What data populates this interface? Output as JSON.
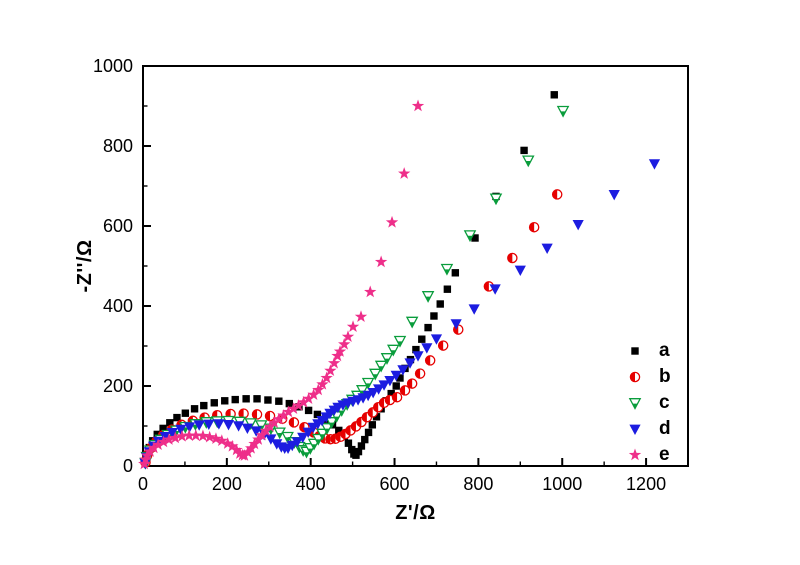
{
  "figure": {
    "background": "#ffffff"
  },
  "chart_data": {
    "type": "scatter",
    "title": "",
    "xlabel": "Z'/Ω",
    "ylabel": "-Z''/Ω",
    "xlim": [
      0,
      1300
    ],
    "ylim": [
      0,
      1000
    ],
    "x_major_ticks": [
      0,
      200,
      400,
      600,
      800,
      1000,
      1200
    ],
    "x_minor_step": 100,
    "y_major_ticks": [
      0,
      200,
      400,
      600,
      800,
      1000
    ],
    "y_minor_step": 100,
    "grid": false,
    "legend_position": "inside-right",
    "series": [
      {
        "name": "a",
        "label": "a",
        "marker": "filled-square",
        "color": "#000000",
        "points": [
          [
            6,
            12
          ],
          [
            9,
            29
          ],
          [
            15,
            46
          ],
          [
            23,
            63
          ],
          [
            34,
            79
          ],
          [
            48,
            94
          ],
          [
            64,
            108
          ],
          [
            81,
            121
          ],
          [
            101,
            132
          ],
          [
            123,
            143
          ],
          [
            145,
            151
          ],
          [
            170,
            158
          ],
          [
            195,
            163
          ],
          [
            220,
            166
          ],
          [
            246,
            168
          ],
          [
            272,
            168
          ],
          [
            298,
            165
          ],
          [
            324,
            162
          ],
          [
            349,
            156
          ],
          [
            372,
            148
          ],
          [
            395,
            139
          ],
          [
            416,
            129
          ],
          [
            435,
            117
          ],
          [
            452,
            103
          ],
          [
            467,
            89
          ],
          [
            480,
            74
          ],
          [
            490,
            57
          ],
          [
            498,
            41
          ],
          [
            503,
            30
          ],
          [
            508,
            27
          ],
          [
            514,
            36
          ],
          [
            521,
            50
          ],
          [
            529,
            66
          ],
          [
            538,
            84
          ],
          [
            547,
            103
          ],
          [
            557,
            123
          ],
          [
            568,
            143
          ],
          [
            580,
            163
          ],
          [
            592,
            181
          ],
          [
            604,
            200
          ],
          [
            613,
            220
          ],
          [
            625,
            244
          ],
          [
            638,
            266
          ],
          [
            651,
            291
          ],
          [
            665,
            317
          ],
          [
            680,
            346
          ],
          [
            694,
            375
          ],
          [
            709,
            405
          ],
          [
            726,
            442
          ],
          [
            745,
            483
          ],
          [
            792,
            570
          ],
          [
            842,
            674
          ],
          [
            909,
            789
          ],
          [
            981,
            928
          ]
        ]
      },
      {
        "name": "b",
        "label": "b",
        "marker": "half-filled-circle",
        "color": "#e60000",
        "points": [
          [
            6,
            9
          ],
          [
            10,
            27
          ],
          [
            19,
            45
          ],
          [
            32,
            62
          ],
          [
            48,
            77
          ],
          [
            69,
            91
          ],
          [
            92,
            103
          ],
          [
            119,
            113
          ],
          [
            147,
            121
          ],
          [
            177,
            127
          ],
          [
            209,
            130
          ],
          [
            240,
            131
          ],
          [
            272,
            129
          ],
          [
            303,
            125
          ],
          [
            332,
            118
          ],
          [
            360,
            109
          ],
          [
            385,
            97
          ],
          [
            407,
            84
          ],
          [
            421,
            75
          ],
          [
            434,
            69
          ],
          [
            447,
            67
          ],
          [
            459,
            68
          ],
          [
            471,
            73
          ],
          [
            483,
            80
          ],
          [
            495,
            89
          ],
          [
            508,
            99
          ],
          [
            521,
            110
          ],
          [
            534,
            122
          ],
          [
            548,
            134
          ],
          [
            561,
            147
          ],
          [
            575,
            158
          ],
          [
            589,
            165
          ],
          [
            606,
            172
          ],
          [
            625,
            189
          ],
          [
            642,
            206
          ],
          [
            661,
            231
          ],
          [
            685,
            264
          ],
          [
            716,
            301
          ],
          [
            752,
            341
          ],
          [
            825,
            449
          ],
          [
            881,
            520
          ],
          [
            933,
            597
          ],
          [
            988,
            679
          ]
        ]
      },
      {
        "name": "c",
        "label": "c",
        "marker": "half-filled-triangle-down",
        "color": "#0a9d3c",
        "points": [
          [
            6,
            8
          ],
          [
            9,
            23
          ],
          [
            17,
            39
          ],
          [
            28,
            53
          ],
          [
            42,
            66
          ],
          [
            59,
            78
          ],
          [
            79,
            89
          ],
          [
            101,
            98
          ],
          [
            125,
            105
          ],
          [
            151,
            110
          ],
          [
            177,
            112
          ],
          [
            204,
            113
          ],
          [
            231,
            111
          ],
          [
            257,
            107
          ],
          [
            282,
            102
          ],
          [
            305,
            94
          ],
          [
            326,
            84
          ],
          [
            345,
            73
          ],
          [
            361,
            60
          ],
          [
            373,
            48
          ],
          [
            382,
            40
          ],
          [
            390,
            36
          ],
          [
            399,
            45
          ],
          [
            408,
            56
          ],
          [
            418,
            68
          ],
          [
            428,
            81
          ],
          [
            439,
            95
          ],
          [
            450,
            110
          ],
          [
            462,
            125
          ],
          [
            474,
            140
          ],
          [
            487,
            155
          ],
          [
            499,
            166
          ],
          [
            511,
            176
          ],
          [
            523,
            190
          ],
          [
            537,
            208
          ],
          [
            554,
            231
          ],
          [
            568,
            251
          ],
          [
            582,
            270
          ],
          [
            597,
            291
          ],
          [
            613,
            313
          ],
          [
            642,
            361
          ],
          [
            680,
            425
          ],
          [
            725,
            493
          ],
          [
            780,
            577
          ],
          [
            842,
            669
          ],
          [
            919,
            764
          ],
          [
            1002,
            888
          ]
        ]
      },
      {
        "name": "d",
        "label": "d",
        "marker": "filled-triangle-down",
        "color": "#1c1ce0",
        "points": [
          [
            5,
            7
          ],
          [
            9,
            22
          ],
          [
            15,
            36
          ],
          [
            25,
            50
          ],
          [
            37,
            62
          ],
          [
            53,
            74
          ],
          [
            70,
            84
          ],
          [
            90,
            92
          ],
          [
            111,
            98
          ],
          [
            134,
            103
          ],
          [
            157,
            105
          ],
          [
            181,
            106
          ],
          [
            204,
            104
          ],
          [
            228,
            101
          ],
          [
            249,
            95
          ],
          [
            270,
            88
          ],
          [
            289,
            79
          ],
          [
            305,
            68
          ],
          [
            319,
            56
          ],
          [
            330,
            48
          ],
          [
            338,
            45
          ],
          [
            346,
            45
          ],
          [
            356,
            52
          ],
          [
            368,
            61
          ],
          [
            381,
            72
          ],
          [
            394,
            85
          ],
          [
            406,
            97
          ],
          [
            417,
            106
          ],
          [
            427,
            114
          ],
          [
            437,
            123
          ],
          [
            446,
            132
          ],
          [
            456,
            140
          ],
          [
            465,
            147
          ],
          [
            477,
            153
          ],
          [
            489,
            158
          ],
          [
            501,
            162
          ],
          [
            513,
            166
          ],
          [
            525,
            171
          ],
          [
            537,
            177
          ],
          [
            549,
            184
          ],
          [
            562,
            193
          ],
          [
            575,
            203
          ],
          [
            589,
            214
          ],
          [
            604,
            227
          ],
          [
            620,
            241
          ],
          [
            637,
            258
          ],
          [
            656,
            276
          ],
          [
            677,
            296
          ],
          [
            700,
            318
          ],
          [
            747,
            356
          ],
          [
            790,
            393
          ],
          [
            840,
            443
          ],
          [
            900,
            490
          ],
          [
            964,
            545
          ],
          [
            1038,
            604
          ],
          [
            1124,
            679
          ],
          [
            1220,
            756
          ]
        ]
      },
      {
        "name": "e",
        "label": "e",
        "marker": "filled-star",
        "color": "#ee2f8a",
        "points": [
          [
            3,
            5
          ],
          [
            6,
            16
          ],
          [
            10,
            26
          ],
          [
            17,
            36
          ],
          [
            26,
            45
          ],
          [
            36,
            53
          ],
          [
            49,
            60
          ],
          [
            62,
            66
          ],
          [
            77,
            70
          ],
          [
            93,
            74
          ],
          [
            110,
            76
          ],
          [
            126,
            76
          ],
          [
            143,
            75
          ],
          [
            159,
            72
          ],
          [
            174,
            68
          ],
          [
            188,
            63
          ],
          [
            202,
            56
          ],
          [
            213,
            49
          ],
          [
            223,
            40
          ],
          [
            231,
            31
          ],
          [
            237,
            27
          ],
          [
            242,
            26
          ],
          [
            250,
            34
          ],
          [
            258,
            44
          ],
          [
            266,
            55
          ],
          [
            275,
            66
          ],
          [
            284,
            77
          ],
          [
            293,
            88
          ],
          [
            303,
            98
          ],
          [
            313,
            108
          ],
          [
            324,
            117
          ],
          [
            335,
            126
          ],
          [
            347,
            135
          ],
          [
            359,
            143
          ],
          [
            371,
            151
          ],
          [
            383,
            159
          ],
          [
            395,
            168
          ],
          [
            407,
            178
          ],
          [
            418,
            190
          ],
          [
            428,
            204
          ],
          [
            438,
            220
          ],
          [
            447,
            238
          ],
          [
            456,
            257
          ],
          [
            464,
            275
          ],
          [
            470,
            286
          ],
          [
            480,
            304
          ],
          [
            489,
            323
          ],
          [
            501,
            348
          ],
          [
            520,
            373
          ],
          [
            542,
            435
          ],
          [
            568,
            510
          ],
          [
            594,
            609
          ],
          [
            623,
            731
          ],
          [
            656,
            900
          ]
        ]
      }
    ]
  }
}
